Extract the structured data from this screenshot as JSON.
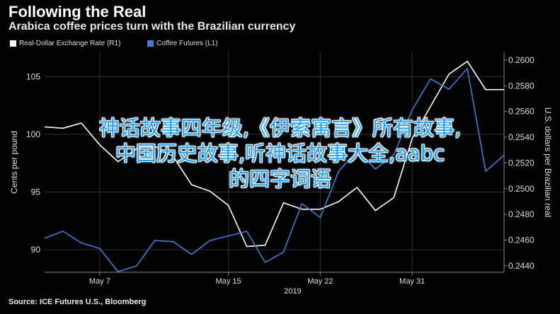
{
  "title": "Following the Real",
  "subtitle": "Arabica coffee prices turn with the Brazilian currency",
  "footer": "Source: ICE Futures U.S., Bloomberg",
  "overlay": {
    "line1": "神话故事四年级,《伊索寓言》所有故事,",
    "line2": "中国历史故事,听神话故事大全,aabc",
    "line3": "的四字词语"
  },
  "chart_data": {
    "type": "line",
    "title": "Following the Real",
    "subtitle": "Arabica coffee prices turn with the Brazilian currency",
    "left_axis": {
      "label": "Cents per pound",
      "ticks": [
        90,
        95,
        100,
        105
      ],
      "range": [
        88.05,
        107.1
      ]
    },
    "right_axis": {
      "label": "U.S. dollars per Brazilian real",
      "ticks": [
        "0.2600",
        "0.2580",
        "0.2560",
        "0.2540",
        "0.2520",
        "0.2500",
        "0.2480",
        "0.2460",
        "0.2440"
      ],
      "range": [
        0.2435,
        0.2606
      ]
    },
    "x_ticks": [
      "May 7",
      "May 15",
      "May 22",
      "May 31"
    ],
    "x_sublabel": "2019",
    "grid": true,
    "legend_position": "top-left",
    "series": [
      {
        "name": "Real-Dollar Exchange Rate (R1)",
        "axis": "right",
        "color": "#ffffff",
        "x": [
          1,
          2,
          3,
          4,
          5,
          6,
          7,
          8,
          9,
          10,
          11,
          12,
          13,
          14,
          15,
          16,
          17,
          18,
          19,
          20,
          21,
          22,
          23,
          24,
          25,
          26
        ],
        "values": [
          0.2548,
          0.2547,
          0.2551,
          0.2534,
          0.2521,
          0.2531,
          0.2533,
          0.2525,
          0.2503,
          0.2498,
          0.2487,
          0.2455,
          0.2456,
          0.2489,
          0.2484,
          0.2484,
          0.249,
          0.2501,
          0.2483,
          0.2493,
          0.2539,
          0.2564,
          0.2589,
          0.2599,
          0.2577,
          0.2577
        ]
      },
      {
        "name": "Coffee Futures (L1)",
        "axis": "left",
        "color": "#3a7fd5",
        "x": [
          1,
          2,
          3,
          4,
          5,
          6,
          7,
          8,
          9,
          10,
          11,
          12,
          13,
          14,
          15,
          16,
          17,
          18,
          19,
          20,
          21,
          22,
          23,
          24,
          25,
          26
        ],
        "values": [
          91.0,
          91.6,
          90.6,
          90.1,
          88.1,
          88.6,
          90.8,
          90.7,
          89.6,
          90.8,
          91.2,
          91.6,
          88.9,
          89.8,
          94.0,
          92.8,
          96.8,
          98.6,
          97.0,
          98.2,
          102.1,
          104.8,
          103.9,
          105.7,
          96.8,
          98.2
        ]
      }
    ]
  }
}
